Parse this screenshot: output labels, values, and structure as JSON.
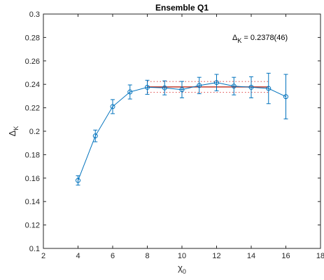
{
  "chart_data": {
    "type": "line",
    "title": "Ensemble Q1",
    "xlabel": {
      "main": "χ",
      "sub": "0"
    },
    "ylabel": {
      "main": "Δ",
      "sub": "K"
    },
    "xlim": [
      2,
      18
    ],
    "ylim": [
      0.1,
      0.3
    ],
    "xticks": [
      2,
      4,
      6,
      8,
      10,
      12,
      14,
      16,
      18
    ],
    "yticks": [
      0.1,
      0.12,
      0.14,
      0.16,
      0.18,
      0.2,
      0.22,
      0.24,
      0.26,
      0.28,
      0.3
    ],
    "grid": false,
    "series": [
      {
        "color": "#0072bd",
        "marker": "circle",
        "x": [
          4,
          5,
          6,
          7,
          8,
          9,
          10,
          11,
          12,
          13,
          14,
          15,
          16
        ],
        "y": [
          0.158,
          0.196,
          0.221,
          0.2335,
          0.2375,
          0.237,
          0.2355,
          0.239,
          0.2415,
          0.2385,
          0.2375,
          0.2365,
          0.2295
        ],
        "err": [
          0.004,
          0.005,
          0.006,
          0.006,
          0.006,
          0.006,
          0.007,
          0.007,
          0.007,
          0.0075,
          0.009,
          0.013,
          0.019
        ]
      }
    ],
    "fit": {
      "x_range": [
        8,
        15
      ],
      "value": 0.2378,
      "error": 0.0046,
      "color": "#c0392b",
      "band_color": "#e05a5a",
      "label": {
        "main": "Δ",
        "sub": "K",
        "rest": " = 0.2378(46)"
      }
    }
  }
}
